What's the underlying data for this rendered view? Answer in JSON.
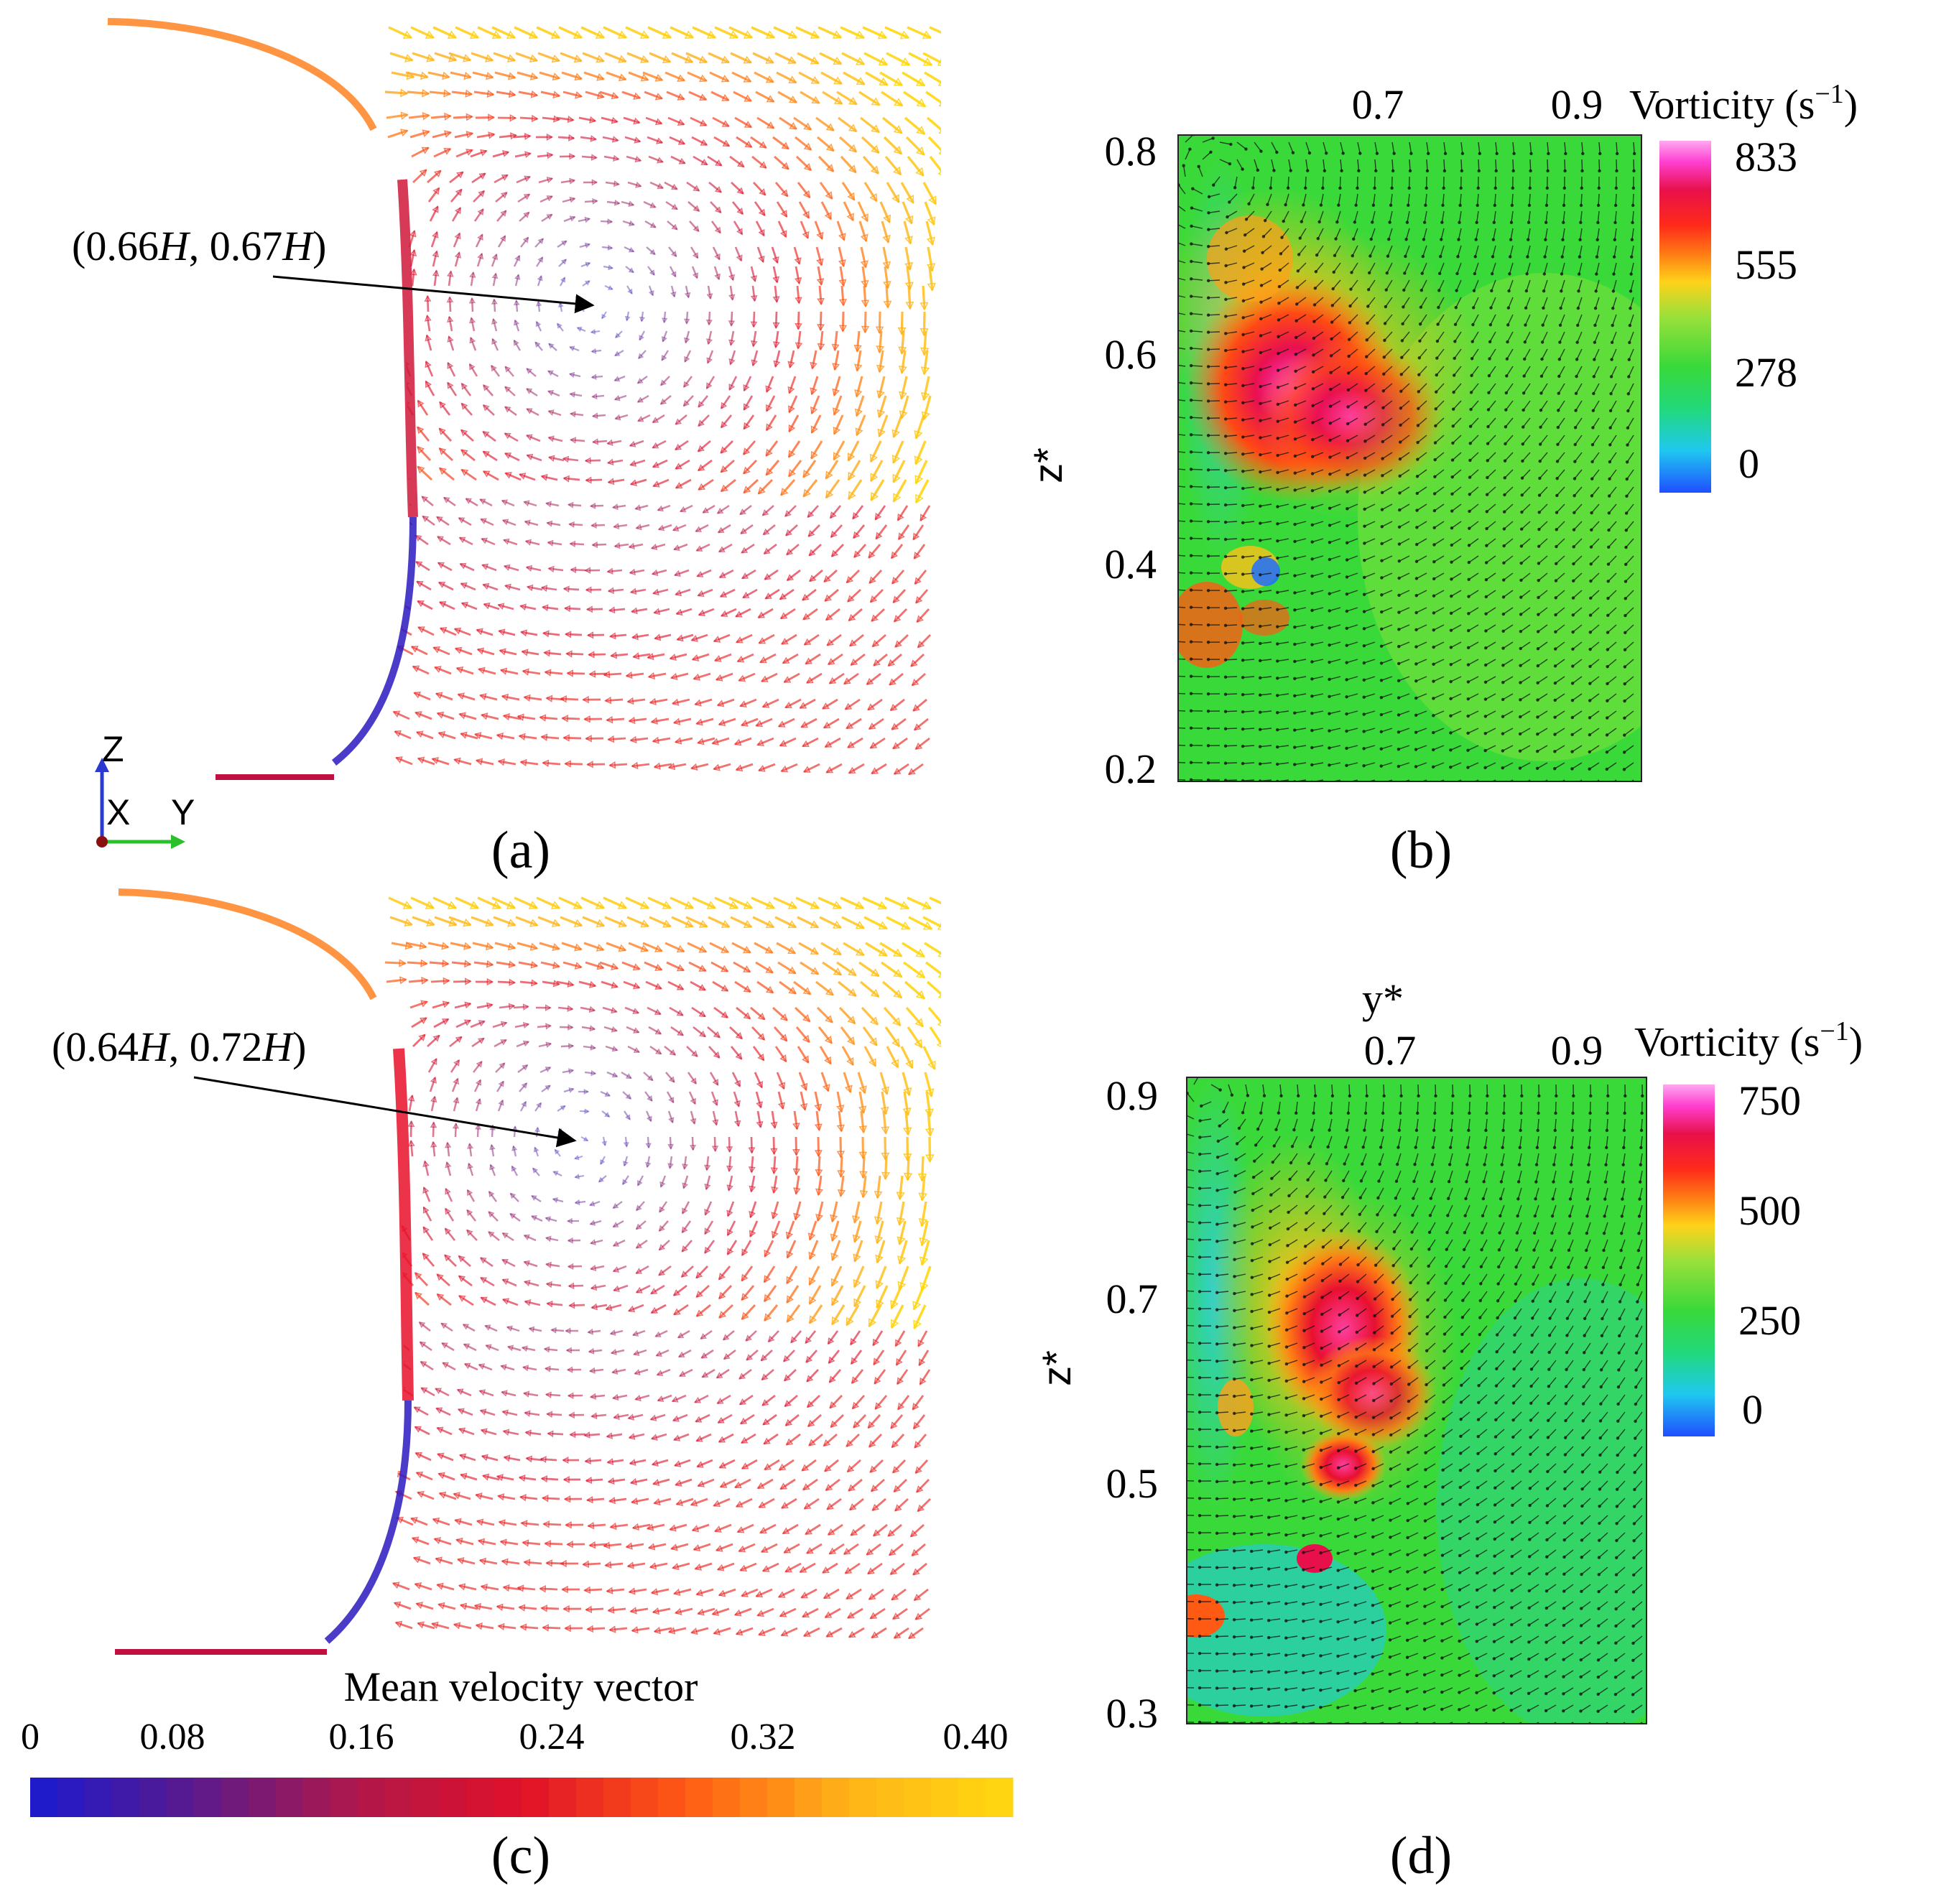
{
  "chart_data": [
    {
      "panel": "(a)",
      "type": "vector-field",
      "title": "Mean velocity vector",
      "annotation": {
        "prefix": "(0.66",
        "sym1": "H",
        "mid": ", 0.67",
        "sym2": "H",
        "suffix": ")",
        "target_y": 0.66,
        "target_z": 0.67
      },
      "axes_triad": {
        "z": "Z",
        "x": "X",
        "y": "Y"
      },
      "colorbar": {
        "ticks": [
          "0",
          "0.08",
          "0.16",
          "0.24",
          "0.32",
          "0.40"
        ],
        "range": [
          0,
          0.4
        ]
      }
    },
    {
      "panel": "(b)",
      "type": "heatmap",
      "xlabel": "",
      "ylabel": "z*",
      "x_ticks": [
        "0.7",
        "0.9"
      ],
      "y_ticks": [
        "0.8",
        "0.6",
        "0.4",
        "0.2"
      ],
      "ylim": [
        0.2,
        0.8
      ],
      "colorbar_title": "Vorticity (s",
      "colorbar_title_sup": "−1",
      "colorbar_ticks": [
        "833",
        "555",
        "278",
        "0"
      ],
      "colorbar_range": [
        0,
        833
      ]
    },
    {
      "panel": "(c)",
      "type": "vector-field",
      "annotation": {
        "prefix": "(0.64",
        "sym1": "H",
        "mid": ", 0.72",
        "sym2": "H",
        "suffix": ")",
        "target_y": 0.64,
        "target_z": 0.72
      }
    },
    {
      "panel": "(d)",
      "type": "heatmap",
      "xlabel": "y*",
      "ylabel": "z*",
      "x_ticks": [
        "0.7",
        "0.9"
      ],
      "y_ticks": [
        "0.9",
        "0.7",
        "0.5",
        "0.3"
      ],
      "ylim": [
        0.3,
        0.9
      ],
      "colorbar_title": "Vorticity (s",
      "colorbar_title_sup": "−1",
      "colorbar_ticks": [
        "750",
        "500",
        "250",
        "0"
      ],
      "colorbar_range": [
        0,
        750
      ]
    }
  ],
  "labels": {
    "a": "(a)",
    "b": "(b)",
    "c": "(c)",
    "d": "(d)"
  },
  "colors": {
    "velocity_scale": [
      "#1a1ad0",
      "#5a1a8c",
      "#b0184a",
      "#e0102a",
      "#ff5a14",
      "#ffb419",
      "#ffd810"
    ],
    "vorticity_scale": [
      "#1f6fff",
      "#1fd9e0",
      "#2fd94a",
      "#8ee03a",
      "#ffd21a",
      "#ff5a14",
      "#e8102a",
      "#ff3fd0",
      "#ff9ff0"
    ]
  }
}
